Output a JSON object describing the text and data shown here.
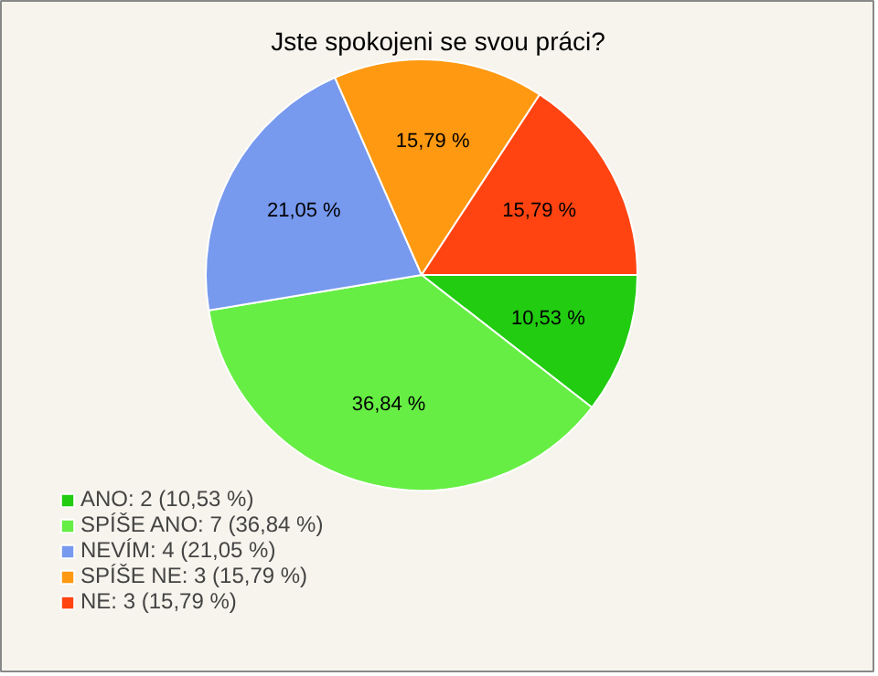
{
  "chart_data": {
    "type": "pie",
    "title": "Jste spokojeni se svou práci?",
    "categories": [
      "ANO: 2 (10,53 %)",
      "SPÍŠE ANO: 7 (36,84 %)",
      "NEVÍM: 4 (21,05 %)",
      "SPÍŠE NE: 3 (15,79 %)",
      "NE: 3 (15,79 %)"
    ],
    "values": [
      10.53,
      36.84,
      21.05,
      15.79,
      15.79
    ],
    "value_labels": [
      "10,53 %",
      "36,84 %",
      "21,05 %",
      "15,79 %",
      "15,79 %"
    ],
    "colors": [
      "#22cc11",
      "#66ee44",
      "#7799ee",
      "#ff9911",
      "#ff4411"
    ],
    "legend": "bottom left"
  }
}
